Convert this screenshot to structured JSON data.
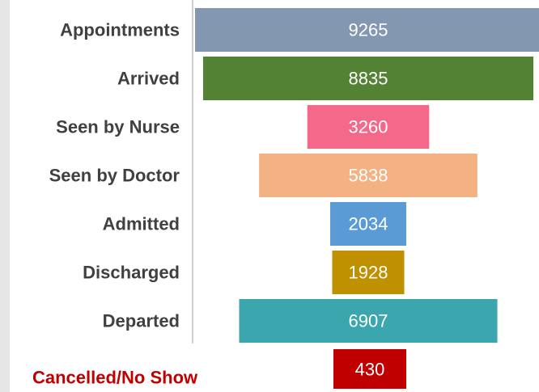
{
  "chart_data": {
    "type": "funnel",
    "categories": [
      "Appointments",
      "Arrived",
      "Seen by Nurse",
      "Seen by Doctor",
      "Admitted",
      "Discharged",
      "Departed"
    ],
    "values": [
      9265,
      8835,
      3260,
      5838,
      2034,
      1928,
      6907
    ],
    "colors": [
      "#8497b0",
      "#548235",
      "#f4688a",
      "#f4b183",
      "#5b9bd5",
      "#bf9000",
      "#3ba6ad"
    ],
    "cancelled": {
      "label": "Cancelled/No Show",
      "value": 430,
      "color": "#c00000"
    }
  }
}
